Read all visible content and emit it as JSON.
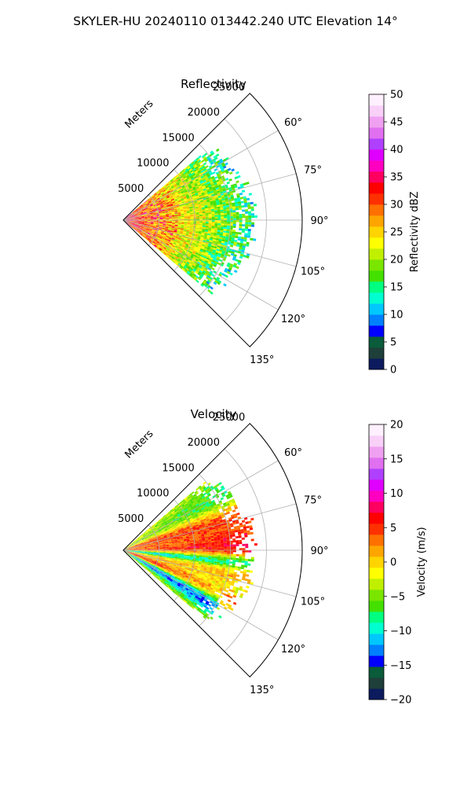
{
  "figure": {
    "suptitle": "SKYLER-HU  20240110  013442.240 UTC Elevation 14°"
  },
  "chart_data": [
    {
      "type": "polar-sector",
      "title": "Reflectivity",
      "range_axis_label": "Meters",
      "range_ticks": [
        5000,
        10000,
        15000,
        20000,
        25000
      ],
      "range_tick_labels": [
        "5000",
        "10000",
        "15000",
        "20000",
        "25000"
      ],
      "rlim": [
        0,
        25000
      ],
      "theta_ticks_deg": [
        60,
        75,
        90,
        105,
        120,
        135
      ],
      "theta_tick_labels": [
        "60°",
        "75°",
        "90°",
        "105°",
        "120°",
        "135°"
      ],
      "theta_range_deg": [
        45,
        135
      ],
      "data_azimuth_range_deg": [
        50,
        130
      ],
      "grid": true,
      "colorbar": {
        "label": "Reflectivity dBZ",
        "range": [
          0,
          50
        ],
        "ticks": [
          0,
          5,
          10,
          15,
          20,
          25,
          30,
          35,
          40,
          45,
          50
        ],
        "tick_labels": [
          "0",
          "5",
          "10",
          "15",
          "20",
          "25",
          "30",
          "35",
          "40",
          "45",
          "50"
        ],
        "colors": [
          "#0c1a5e",
          "#1f3f3a",
          "#0a5c3a",
          "#0000ff",
          "#0080ff",
          "#00c8ff",
          "#00ffd0",
          "#00ff80",
          "#44e000",
          "#7ae600",
          "#c0f000",
          "#ffff00",
          "#ffd400",
          "#ffa500",
          "#ff7000",
          "#ff3000",
          "#ff0000",
          "#ff0060",
          "#ff00c0",
          "#e000ff",
          "#b040ff",
          "#e070f0",
          "#f0a0f0",
          "#f8d0f8",
          "#fff0ff"
        ]
      },
      "field_description_dbz": {
        "near": 30,
        "mid": 24,
        "far": 17
      }
    },
    {
      "type": "polar-sector",
      "title": "Velocity",
      "range_axis_label": "Meters",
      "range_ticks": [
        5000,
        10000,
        15000,
        20000,
        25000
      ],
      "range_tick_labels": [
        "5000",
        "10000",
        "15000",
        "20000",
        "25000"
      ],
      "rlim": [
        0,
        25000
      ],
      "theta_ticks_deg": [
        60,
        75,
        90,
        105,
        120,
        135
      ],
      "theta_tick_labels": [
        "60°",
        "75°",
        "90°",
        "105°",
        "120°",
        "135°"
      ],
      "theta_range_deg": [
        45,
        135
      ],
      "data_azimuth_range_deg": [
        50,
        130
      ],
      "grid": true,
      "colorbar": {
        "label": "Velocity (m/s)",
        "range": [
          -20,
          20
        ],
        "ticks": [
          -20,
          -15,
          -10,
          -5,
          0,
          5,
          10,
          15,
          20
        ],
        "tick_labels": [
          "−20",
          "−15",
          "−10",
          "−5",
          "0",
          "5",
          "10",
          "15",
          "20"
        ],
        "colors": [
          "#0c1a5e",
          "#1f3f3a",
          "#0a5c3a",
          "#0000ff",
          "#0080ff",
          "#00c8ff",
          "#00ffd0",
          "#00ff80",
          "#44e000",
          "#7ae600",
          "#c0f000",
          "#ffff00",
          "#ffd400",
          "#ffa500",
          "#ff7000",
          "#ff3000",
          "#ff0000",
          "#ff0060",
          "#ff00c0",
          "#e000ff",
          "#b040ff",
          "#e070f0",
          "#f0a0f0",
          "#f8d0f8",
          "#fff0ff"
        ]
      }
    }
  ]
}
